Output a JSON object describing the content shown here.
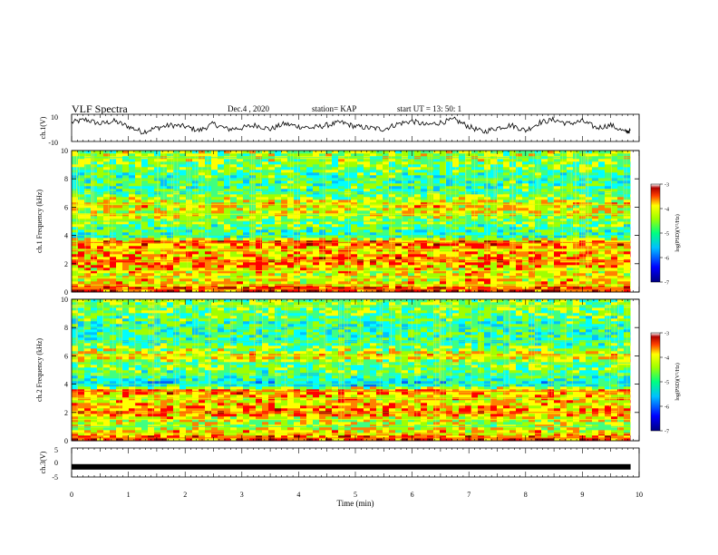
{
  "header": {
    "title": "VLF Spectra",
    "date": "Dec.4 , 2020",
    "station": "station= KAP",
    "start": "start UT = 13: 50: 1"
  },
  "colors": {
    "trace": "#000000",
    "colormap": [
      "#000080",
      "#0000ff",
      "#00a0ff",
      "#00ffff",
      "#40ff80",
      "#a0ff00",
      "#ffff00",
      "#ff8000",
      "#ff0000",
      "#8b0000",
      "#ffffff"
    ]
  },
  "chart_data": [
    {
      "type": "line",
      "panel": "waveform-ch1",
      "ylabel": "ch.1(V)",
      "ylim": [
        -10,
        10
      ],
      "yticks": [
        "10",
        "-10"
      ],
      "x": [
        0,
        0.25,
        0.5,
        0.75,
        1.0,
        1.25,
        1.5,
        1.75,
        2.0,
        2.25,
        2.5,
        2.75,
        3.0,
        3.25,
        3.5,
        3.75,
        4.0,
        4.25,
        4.5,
        4.75,
        5.0,
        5.25,
        5.5,
        5.75,
        6.0,
        6.25,
        6.5,
        6.75,
        7.0,
        7.25,
        7.5,
        7.75,
        8.0,
        8.25,
        8.5,
        8.75,
        9.0,
        9.25,
        9.5,
        9.75,
        9.85
      ],
      "y": [
        4,
        6,
        3,
        5,
        1,
        -3,
        0,
        2,
        1,
        -2,
        3,
        -1,
        0,
        2,
        -1,
        3,
        1,
        0,
        2,
        4,
        1,
        0,
        -1,
        3,
        5,
        2,
        4,
        6,
        1,
        -3,
        0,
        2,
        -2,
        4,
        6,
        3,
        5,
        0,
        2,
        -3,
        -2
      ]
    },
    {
      "type": "heatmap",
      "panel": "spectrogram-ch1",
      "ylabel": "ch.1 Frequency (kHz)",
      "ylim": [
        0,
        10
      ],
      "yticks": [
        "0",
        "2",
        "4",
        "6",
        "8",
        "10"
      ],
      "xlim": [
        0,
        9.85
      ],
      "colorbar": {
        "label": "log(PSD)(V²/Hz)",
        "range": [
          -7,
          -3
        ],
        "ticks": [
          "-3",
          "-4",
          "-5",
          "-6",
          "-7"
        ]
      },
      "frequency_bands_khz": [
        0.2,
        0.5,
        1.0,
        1.5,
        2.2,
        3.0,
        3.5,
        4.0,
        5.0,
        5.5,
        6.2,
        7.0,
        8.0,
        9.5
      ],
      "band_level": [
        -3.5,
        -4.0,
        -4.3,
        -4.2,
        -3.8,
        -4.1,
        -3.6,
        -5.3,
        -4.8,
        -4.4,
        -4.2,
        -5.0,
        -5.1,
        -4.6
      ]
    },
    {
      "type": "heatmap",
      "panel": "spectrogram-ch2",
      "ylabel": "ch.2 Frequency (kHz)",
      "ylim": [
        0,
        10
      ],
      "yticks": [
        "0",
        "2",
        "4",
        "6",
        "8",
        "10"
      ],
      "xlim": [
        0,
        9.85
      ],
      "colorbar": {
        "label": "log(PSD)(V²/Hz)",
        "range": [
          -7,
          -3
        ],
        "ticks": [
          "-3",
          "-4",
          "-5",
          "-6",
          "-7"
        ]
      },
      "frequency_bands_khz": [
        0.2,
        0.5,
        1.0,
        1.5,
        2.0,
        3.0,
        3.5,
        4.0,
        4.7,
        5.5,
        6.0,
        7.0,
        8.0,
        9.5
      ],
      "band_level": [
        -3.6,
        -4.0,
        -4.6,
        -4.4,
        -3.8,
        -4.2,
        -3.7,
        -5.6,
        -5.0,
        -4.8,
        -4.2,
        -5.1,
        -5.2,
        -4.7
      ]
    },
    {
      "type": "line",
      "panel": "waveform-ch3",
      "ylabel": "ch.3(V)",
      "ylim": [
        -5,
        5
      ],
      "yticks": [
        "5",
        "0",
        "-5"
      ],
      "x": [
        0,
        9.85
      ],
      "y": [
        -1.5,
        -1.5
      ]
    }
  ],
  "xaxis": {
    "label": "Time (min)",
    "range": [
      0,
      10
    ],
    "ticks": [
      "0",
      "1",
      "2",
      "3",
      "4",
      "5",
      "6",
      "7",
      "8",
      "9",
      "10"
    ]
  }
}
